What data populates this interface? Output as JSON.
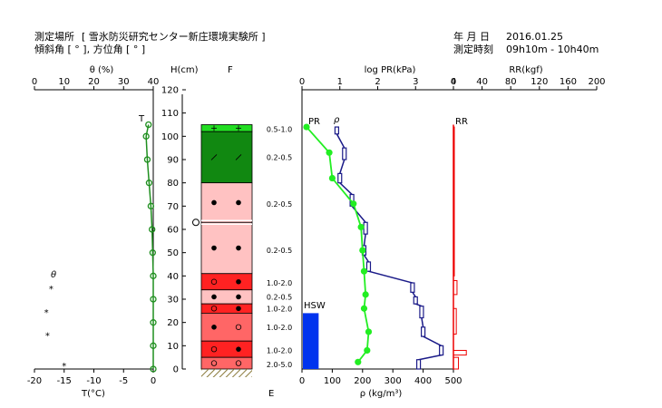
{
  "header": {
    "location_label": "測定場所",
    "location_value": "[ 雪氷防災研究センター新庄環境実験所 ]",
    "angle_label": "傾斜角 [ ° ], 方位角 [ ° ]",
    "date_label": "年 月 日",
    "date_value": "2016.01.25",
    "time_label": "測定時刻",
    "time_value": "09h10m - 10h40m"
  },
  "axes": {
    "theta_top": "θ (%)",
    "temp_bottom": "T(°C)",
    "height": "H(cm)",
    "F": "F",
    "E": "E",
    "logpr": "log PR(kPa)",
    "density_bottom": "ρ (kg/m³)",
    "rr": "RR(kgf)"
  },
  "ticks": {
    "theta": [
      "0",
      "10",
      "20",
      "30",
      "40"
    ],
    "temp": [
      "-20",
      "-15",
      "-10",
      "-5",
      "0"
    ],
    "height": [
      "0",
      "10",
      "20",
      "30",
      "40",
      "50",
      "60",
      "70",
      "80",
      "90",
      "100",
      "110",
      "120"
    ],
    "logpr": [
      "0",
      "1",
      "2",
      "3",
      "4"
    ],
    "density": [
      "0",
      "100",
      "200",
      "300",
      "400",
      "500"
    ],
    "rr": [
      "0",
      "40",
      "80",
      "120",
      "160",
      "200"
    ]
  },
  "colors": {
    "temperature": "#1f8f1f",
    "pr": "#22ee22",
    "density": "#1a1a88",
    "rr": "#ee0000",
    "hsw": "#0033ee"
  },
  "chart_data": {
    "type": "snow-pit-profile",
    "temperature": {
      "label": "T",
      "h": [
        105,
        100,
        90,
        80,
        70,
        60,
        50,
        40,
        30,
        20,
        10,
        0
      ],
      "t": [
        -0.8,
        -1.2,
        -1.0,
        -0.7,
        -0.4,
        -0.2,
        -0.1,
        0,
        0,
        0,
        0,
        0
      ]
    },
    "theta": {
      "label": "θ",
      "h": [
        35,
        25,
        15,
        2
      ],
      "t": [
        -17.2,
        -18.0,
        -17.8,
        -15.0
      ]
    },
    "pr": {
      "label": "PR",
      "h": [
        104,
        93,
        82,
        71,
        61,
        51,
        42,
        32,
        26,
        16,
        8,
        3
      ],
      "rho": [
        15,
        90,
        100,
        170,
        195,
        200,
        205,
        210,
        205,
        220,
        215,
        185
      ]
    },
    "density": {
      "label": "ρ",
      "segments": [
        {
          "top": 104,
          "bottom": 101,
          "rho": 115
        },
        {
          "top": 95,
          "bottom": 90,
          "rho": 140
        },
        {
          "top": 84,
          "bottom": 80,
          "rho": 125
        },
        {
          "top": 75,
          "bottom": 70,
          "rho": 165
        },
        {
          "top": 63,
          "bottom": 58,
          "rho": 210
        },
        {
          "top": 53,
          "bottom": 49,
          "rho": 205
        },
        {
          "top": 46,
          "bottom": 42,
          "rho": 220
        },
        {
          "top": 37,
          "bottom": 33,
          "rho": 365
        },
        {
          "top": 31,
          "bottom": 28,
          "rho": 375
        },
        {
          "top": 27,
          "bottom": 22,
          "rho": 395
        },
        {
          "top": 18,
          "bottom": 14,
          "rho": 400
        },
        {
          "top": 10,
          "bottom": 6,
          "rho": 460
        },
        {
          "top": 4,
          "bottom": 0,
          "rho": 385
        }
      ]
    },
    "rr": {
      "label": "RR",
      "segments": [
        {
          "top": 104,
          "bottom": 40,
          "rr": 1
        },
        {
          "top": 38,
          "bottom": 32,
          "rr": 5
        },
        {
          "top": 26,
          "bottom": 15,
          "rr": 4
        },
        {
          "top": 8,
          "bottom": 6,
          "rr": 18
        },
        {
          "top": 5,
          "bottom": 0,
          "rr": 7
        }
      ]
    },
    "hsw": {
      "label": "HSW",
      "rho": 55,
      "h": 24
    },
    "layers": [
      {
        "top": 105,
        "bottom": 102,
        "color": "#22dd22",
        "symbol": "+",
        "grain": "0.5-1.0"
      },
      {
        "top": 102,
        "bottom": 80,
        "color": "#118811",
        "symbol": "/",
        "grain": "0.2-0.5"
      },
      {
        "top": 80,
        "bottom": 63,
        "color": "#ffc2c2",
        "symbol": "dot",
        "grain": "0.2-0.5"
      },
      {
        "top": 63,
        "bottom": 41,
        "color": "#ffc2c2",
        "symbol": "dot",
        "grain": "0.2-0.5"
      },
      {
        "top": 41,
        "bottom": 34,
        "color": "#ff2222",
        "symbol": "ring-dot",
        "grain": "1.0-2.0"
      },
      {
        "top": 34,
        "bottom": 28,
        "color": "#ffc2c2",
        "symbol": "dot",
        "grain": "0.2-0.5"
      },
      {
        "top": 28,
        "bottom": 24,
        "color": "#ff2222",
        "symbol": "ring-dot",
        "grain": "1.0-2.0"
      },
      {
        "top": 24,
        "bottom": 12,
        "color": "#ff6666",
        "symbol": "dot-ring",
        "grain": "1.0-2.0"
      },
      {
        "top": 12,
        "bottom": 5,
        "color": "#ff2222",
        "symbol": "ring-dot",
        "grain": "1.0-2.0"
      },
      {
        "top": 5,
        "bottom": 0,
        "color": "#ff6666",
        "symbol": "ring-ring",
        "grain": "2.0-5.0"
      }
    ],
    "grain_labels": [
      {
        "h": 103,
        "text": "0.5-1.0"
      },
      {
        "h": 91,
        "text": "0.2-0.5"
      },
      {
        "h": 71,
        "text": "0.2-0.5"
      },
      {
        "h": 51,
        "text": "0.2-0.5"
      },
      {
        "h": 37,
        "text": "1.0-2.0"
      },
      {
        "h": 31,
        "text": "0.2-0.5"
      },
      {
        "h": 26,
        "text": "1.0-2.0"
      },
      {
        "h": 18,
        "text": "1.0-2.0"
      },
      {
        "h": 8,
        "text": "1.0-2.0"
      },
      {
        "h": 2,
        "text": "2.0-5.0"
      }
    ],
    "crust_h": 63
  }
}
